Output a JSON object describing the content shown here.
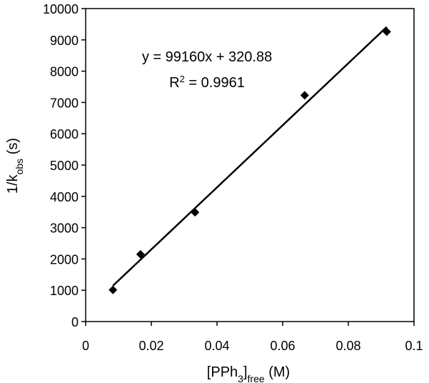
{
  "chart_data": {
    "type": "scatter",
    "title": "",
    "xlabel": {
      "main": "[PPh",
      "sub1": "3",
      "sub2": "free",
      "tail": " (M)"
    },
    "ylabel": {
      "main": "1/k",
      "sub": "obs",
      "tail": " (s)"
    },
    "xlim": [
      0,
      0.1
    ],
    "ylim": [
      0,
      10000
    ],
    "x_ticks": [
      0,
      0.02,
      0.04,
      0.06,
      0.08,
      0.1
    ],
    "x_tick_labels": [
      "0",
      "0.02",
      "0.04",
      "0.06",
      "0.08",
      "0.1"
    ],
    "y_ticks": [
      0,
      1000,
      2000,
      3000,
      4000,
      5000,
      6000,
      7000,
      8000,
      9000,
      10000
    ],
    "y_tick_labels": [
      "0",
      "1000",
      "2000",
      "3000",
      "4000",
      "5000",
      "6000",
      "7000",
      "8000",
      "9000",
      "10000"
    ],
    "grid": false,
    "legend": "none",
    "marker": "diamond",
    "series": [
      {
        "points": [
          {
            "x": 0.0083,
            "y": 1010
          },
          {
            "x": 0.0167,
            "y": 2150
          },
          {
            "x": 0.0333,
            "y": 3490
          },
          {
            "x": 0.0667,
            "y": 7230
          },
          {
            "x": 0.0917,
            "y": 9260
          }
        ]
      }
    ],
    "trendline": {
      "slope": 99160,
      "intercept": 320.88,
      "x_range": [
        0.0083,
        0.0917
      ]
    },
    "annotations": {
      "equation": "y = 99160x + 320.88",
      "r2_prefix": "R",
      "r2_sup": "2",
      "r2_rest": " = 0.9961"
    },
    "colors": {
      "marker": "#000000",
      "line": "#000000",
      "axis": "#000000"
    }
  }
}
